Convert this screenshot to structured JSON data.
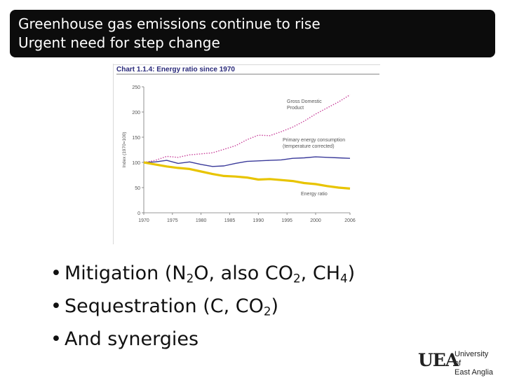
{
  "slide": {
    "title_line1": "Greenhouse gas emissions continue to rise",
    "title_line2": "Urgent need for step change"
  },
  "bullets": {
    "b1": {
      "a": "Mitigation (N",
      "s1": "2",
      "b": "O, also CO",
      "s2": "2",
      "c": ", CH",
      "s3": "4",
      "d": ")"
    },
    "b2": {
      "a": "Sequestration (C, CO",
      "s1": "2",
      "b": ")"
    },
    "b3": {
      "a": "And synergies"
    }
  },
  "logo": {
    "mark": "UEA",
    "line1": "University of",
    "line2": "East Anglia"
  },
  "chart_data": {
    "type": "line",
    "title": "Chart 1.1.4:  Energy ratio since 1970",
    "ylabel": "Index (1970=100)",
    "xlim": [
      1970,
      2006
    ],
    "ylim": [
      0,
      250
    ],
    "xticks": [
      "1970",
      "1975",
      "1980",
      "1985",
      "1990",
      "1995",
      "2000",
      "2006"
    ],
    "yticks": [
      "0",
      "50",
      "100",
      "150",
      "200",
      "250"
    ],
    "x": [
      1970,
      1972,
      1974,
      1976,
      1978,
      1980,
      1982,
      1984,
      1986,
      1988,
      1990,
      1992,
      1994,
      1996,
      1998,
      2000,
      2002,
      2004,
      2006
    ],
    "series": [
      {
        "name": "Gross Domestic Product",
        "color": "#c8409a",
        "style": "dotted",
        "values": [
          100,
          104,
          112,
          110,
          115,
          117,
          119,
          126,
          133,
          145,
          154,
          153,
          161,
          170,
          182,
          196,
          208,
          220,
          234
        ]
      },
      {
        "name": "Primary energy consumption (temperature corrected)",
        "color": "#3a3a9a",
        "style": "solid",
        "values": [
          100,
          101,
          104,
          98,
          101,
          96,
          92,
          93,
          98,
          102,
          103,
          104,
          105,
          108,
          109,
          111,
          110,
          109,
          108
        ]
      },
      {
        "name": "Energy ratio",
        "color": "#e8c400",
        "style": "solid",
        "values": [
          100,
          96,
          92,
          89,
          87,
          82,
          77,
          73,
          72,
          70,
          66,
          67,
          65,
          63,
          59,
          57,
          53,
          50,
          48
        ]
      }
    ]
  }
}
